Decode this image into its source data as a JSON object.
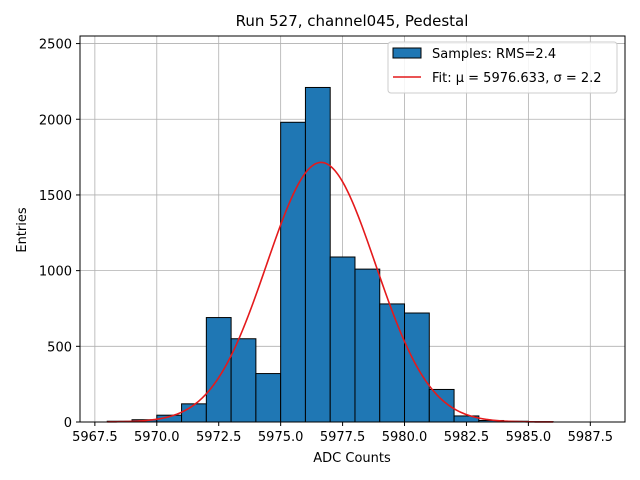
{
  "chart_data": {
    "type": "bar",
    "title": "Run 527, channel045, Pedestal",
    "xlabel": "ADC Counts",
    "ylabel": "Entries",
    "xlim": [
      5966.9,
      5988.9
    ],
    "ylim": [
      0,
      2550
    ],
    "x_ticks": [
      5967.5,
      5970.0,
      5972.5,
      5975.0,
      5977.5,
      5980.0,
      5982.5,
      5985.0,
      5987.5
    ],
    "x_tick_labels": [
      "5967.5",
      "5970.0",
      "5972.5",
      "5975.0",
      "5977.5",
      "5980.0",
      "5982.5",
      "5985.0",
      "5987.5"
    ],
    "y_ticks": [
      0,
      500,
      1000,
      1500,
      2000,
      2500
    ],
    "y_tick_labels": [
      "0",
      "500",
      "1000",
      "1500",
      "2000",
      "2500"
    ],
    "grid": true,
    "legend_position": "top-right",
    "bins": {
      "edges": [
        5968,
        5969,
        5970,
        5971,
        5972,
        5973,
        5974,
        5975,
        5976,
        5977,
        5978,
        5979,
        5980,
        5981,
        5982,
        5983,
        5984,
        5985,
        5986
      ],
      "counts": [
        5,
        15,
        45,
        120,
        690,
        550,
        320,
        1980,
        2210,
        1090,
        1010,
        780,
        720,
        215,
        40,
        10,
        5,
        2
      ]
    },
    "series": [
      {
        "name": "Samples: RMS=2.4",
        "type": "bar",
        "color": "#1f77b4",
        "edgecolor": "#000000"
      },
      {
        "name": "Fit: μ = 5976.633, σ = 2.2",
        "type": "line",
        "color": "#e41a1c",
        "model": "gaussian",
        "mu": 5976.633,
        "sigma": 2.2,
        "amplitude": 1715,
        "x_range": [
          5968,
          5986
        ]
      }
    ]
  }
}
